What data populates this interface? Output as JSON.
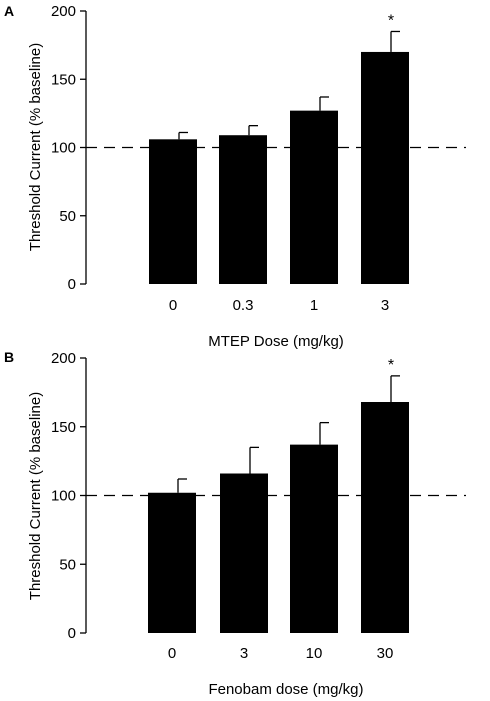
{
  "chart_data": [
    {
      "type": "bar",
      "panel_label": "A",
      "categories": [
        "0",
        "0.3",
        "1",
        "3"
      ],
      "values": [
        106,
        109,
        127,
        170
      ],
      "errors": [
        5,
        7,
        10,
        15
      ],
      "significance": [
        "",
        "",
        "",
        "*"
      ],
      "xlabel": "MTEP Dose (mg/kg)",
      "ylabel": "Threshold Current (% baseline)",
      "ylim": [
        0,
        200
      ],
      "yticks": [
        "0",
        "50",
        "100",
        "150",
        "200"
      ],
      "baseline": 100,
      "bar_color": "#000000",
      "grid": false
    },
    {
      "type": "bar",
      "panel_label": "B",
      "categories": [
        "0",
        "3",
        "10",
        "30"
      ],
      "values": [
        102,
        116,
        137,
        168
      ],
      "errors": [
        10,
        19,
        16,
        19
      ],
      "significance": [
        "",
        "",
        "",
        "*"
      ],
      "xlabel": "Fenobam dose (mg/kg)",
      "ylabel": "Threshold Current (% baseline)",
      "ylim": [
        0,
        200
      ],
      "yticks": [
        "0",
        "50",
        "100",
        "150",
        "200"
      ],
      "baseline": 100,
      "bar_color": "#000000",
      "grid": false
    }
  ]
}
